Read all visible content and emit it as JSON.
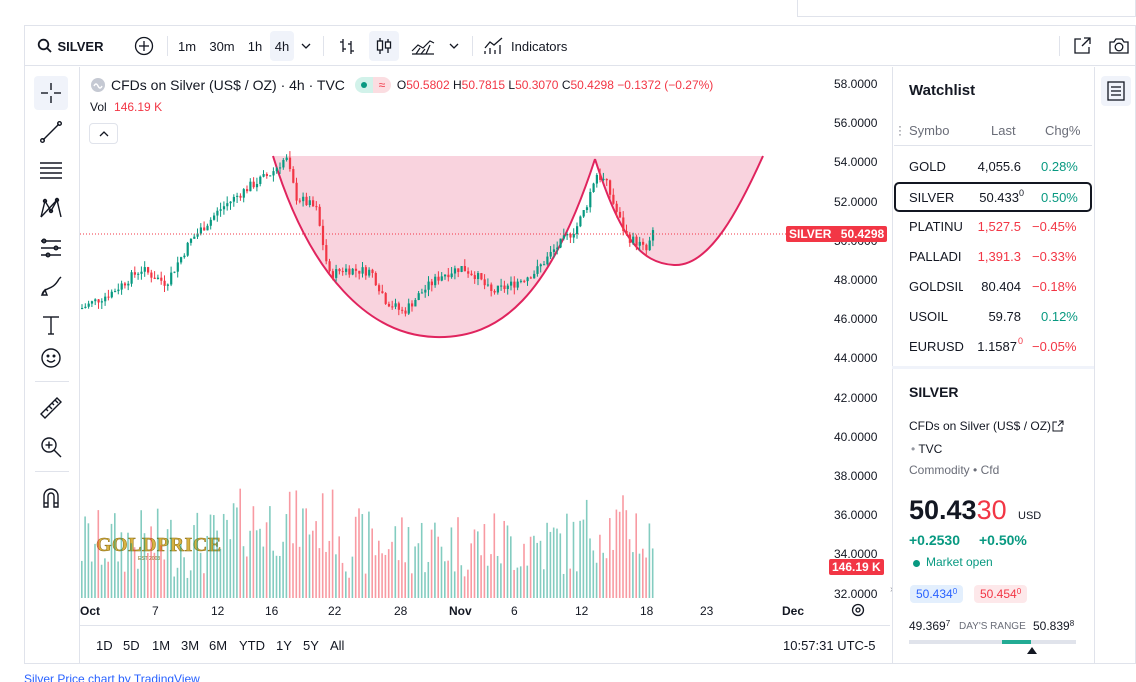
{
  "toolbar": {
    "symbol": "SILVER",
    "timeframes": [
      "1m",
      "30m",
      "1h",
      "4h"
    ],
    "active_timeframe": "4h",
    "indicators_label": "Indicators"
  },
  "legend": {
    "title": "CFDs on Silver (US$ / OZ) · 4h · TVC",
    "open_label": "O",
    "open": "50.5802",
    "high_label": "H",
    "high": "50.7815",
    "low_label": "L",
    "low": "50.3070",
    "close_label": "C",
    "close": "50.4298",
    "change": "−0.1372 (−0.27%)",
    "vol_label": "Vol",
    "vol_value": "146.19 K"
  },
  "price_axis": [
    "58.0000",
    "56.0000",
    "54.0000",
    "52.0000",
    "50.0000",
    "48.0000",
    "46.0000",
    "44.0000",
    "42.0000",
    "40.0000",
    "38.0000",
    "36.0000",
    "34.0000",
    "32.0000"
  ],
  "time_axis": [
    "Oct",
    "7",
    "12",
    "16",
    "22",
    "28",
    "Nov",
    "6",
    "12",
    "18",
    "23",
    "Dec"
  ],
  "last_price_tag": {
    "symbol": "SILVER",
    "price": "50.4298"
  },
  "volume_tag": "146.19 K",
  "watermark": "GOLDPRICE",
  "ranges": [
    "1D",
    "5D",
    "1M",
    "3M",
    "6M",
    "YTD",
    "1Y",
    "5Y",
    "All"
  ],
  "clock": "10:57:31 UTC-5",
  "watchlist": {
    "title": "Watchlist",
    "headers": {
      "symbol": "Symbo",
      "last": "Last",
      "chg": "Chg%"
    },
    "rows": [
      {
        "symbol": "GOLD",
        "last": "4,055.6",
        "chg": "0.28%",
        "dir": "pos"
      },
      {
        "symbol": "SILVER",
        "last": "50.433",
        "last_sup": "0",
        "chg": "0.50%",
        "dir": "pos"
      },
      {
        "symbol": "PLATINU",
        "last": "1,527.5",
        "chg": "−0.45%",
        "dir": "neg"
      },
      {
        "symbol": "PALLADI",
        "last": "1,391.3",
        "chg": "−0.33%",
        "dir": "neg"
      },
      {
        "symbol": "GOLDSIL",
        "last": "80.404",
        "chg": "−0.18%",
        "dir": "neg"
      },
      {
        "symbol": "USOIL",
        "last": "59.78",
        "chg": "0.12%",
        "dir": "pos"
      },
      {
        "symbol": "EURUSD",
        "last": "1.1587",
        "last_sup": "0",
        "chg": "−0.05%",
        "dir": "neg"
      }
    ]
  },
  "details": {
    "symbol": "SILVER",
    "name": "CFDs on Silver (US$ / OZ)",
    "exchange": "TVC",
    "category": "Commodity",
    "type": "Cfd",
    "price_main": "50.43",
    "price_tail": "30",
    "currency": "USD",
    "change": "+0.2530",
    "change_pct": "+0.50%",
    "status": "Market open",
    "bid": "50.434",
    "bid_sup": "0",
    "ask": "50.454",
    "ask_sup": "0",
    "range_low": "49.369",
    "range_low_sup": "7",
    "range_label": "DAY'S RANGE",
    "range_high": "50.839",
    "range_high_sup": "8"
  },
  "credit": "Silver Price chart by TradingView",
  "colors": {
    "up": "#089981",
    "down": "#f23645",
    "pattern": "#f7c4d3",
    "pattern_line": "#e0245e"
  }
}
